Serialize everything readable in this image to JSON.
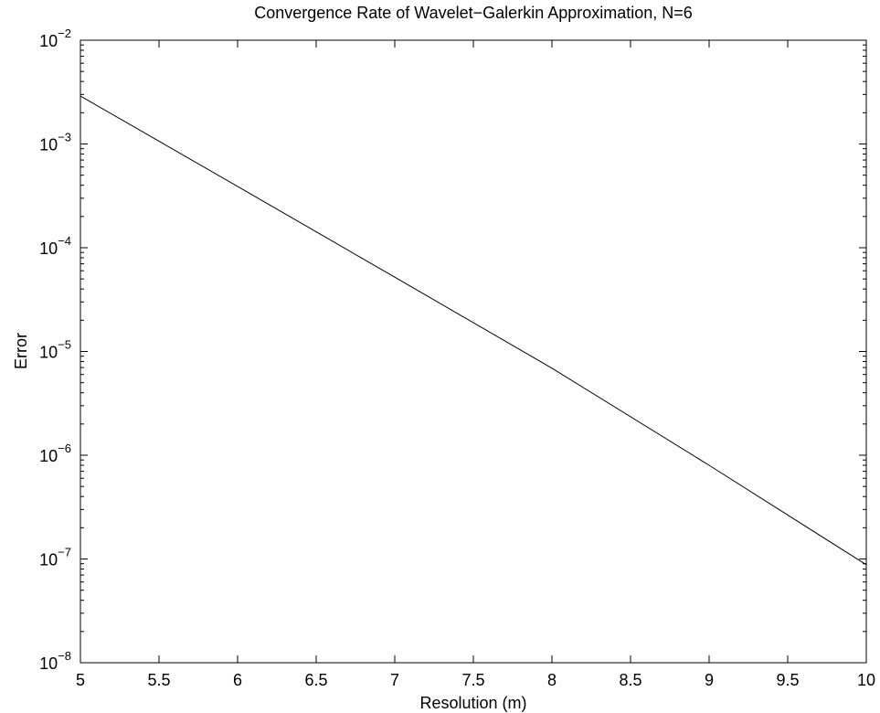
{
  "chart_data": {
    "type": "line",
    "title": "Convergence Rate of Wavelet−Galerkin Approximation, N=6",
    "xlabel": "Resolution (m)",
    "ylabel": "Error",
    "x_scale": "linear",
    "y_scale": "log",
    "xlim": [
      5,
      10
    ],
    "ylim": [
      1e-08,
      0.01
    ],
    "x_ticks": [
      5,
      5.5,
      6,
      6.5,
      7,
      7.5,
      8,
      8.5,
      9,
      9.5,
      10
    ],
    "x_tick_labels": [
      "5",
      "5.5",
      "6",
      "6.5",
      "7",
      "7.5",
      "8",
      "8.5",
      "9",
      "9.5",
      "10"
    ],
    "y_ticks": [
      {
        "value": 1e-08,
        "base": "10",
        "exponent": "−8"
      },
      {
        "value": 1e-07,
        "base": "10",
        "exponent": "−7"
      },
      {
        "value": 1e-06,
        "base": "10",
        "exponent": "−6"
      },
      {
        "value": 1e-05,
        "base": "10",
        "exponent": "−5"
      },
      {
        "value": 0.0001,
        "base": "10",
        "exponent": "−4"
      },
      {
        "value": 0.001,
        "base": "10",
        "exponent": "−3"
      },
      {
        "value": 0.01,
        "base": "10",
        "exponent": "−2"
      }
    ],
    "grid": false,
    "legend": null,
    "series": [
      {
        "color": "#000000",
        "x": [
          5,
          6,
          7,
          8,
          9,
          10
        ],
        "y": [
          0.0029,
          0.00039,
          5.2e-05,
          6.9e-06,
          8e-07,
          8.8e-08
        ]
      }
    ]
  }
}
